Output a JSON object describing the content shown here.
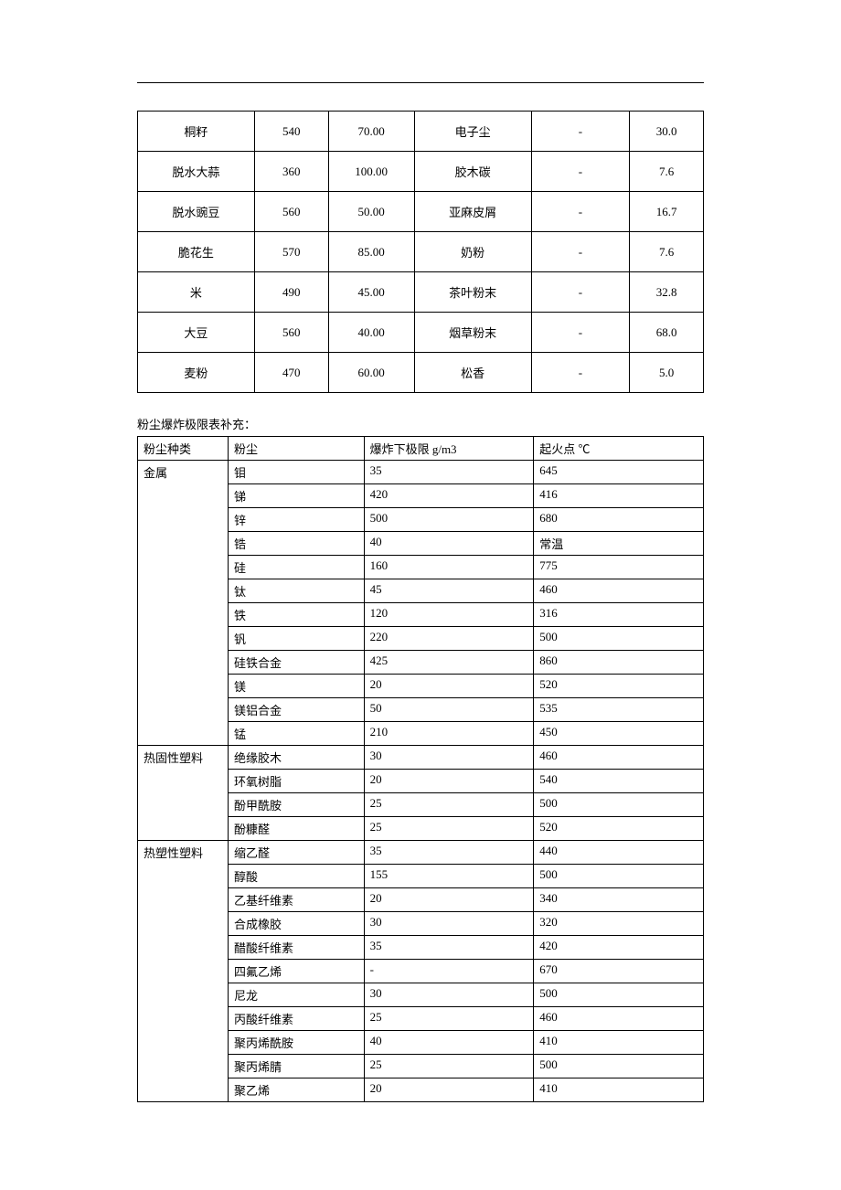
{
  "table1": {
    "rows": [
      {
        "a": "桐籽",
        "b": "540",
        "c": "70.00",
        "d": "电子尘",
        "e": "-",
        "f": "30.0"
      },
      {
        "a": "脱水大蒜",
        "b": "360",
        "c": "100.00",
        "d": "胶木碳",
        "e": "-",
        "f": "7.6"
      },
      {
        "a": "脱水豌豆",
        "b": "560",
        "c": "50.00",
        "d": "亚麻皮屑",
        "e": "-",
        "f": "16.7"
      },
      {
        "a": "脆花生",
        "b": "570",
        "c": "85.00",
        "d": "奶粉",
        "e": "-",
        "f": "7.6"
      },
      {
        "a": "米",
        "b": "490",
        "c": "45.00",
        "d": "茶叶粉末",
        "e": "-",
        "f": "32.8"
      },
      {
        "a": "大豆",
        "b": "560",
        "c": "40.00",
        "d": "烟草粉末",
        "e": "-",
        "f": "68.0"
      },
      {
        "a": "麦粉",
        "b": "470",
        "c": "60.00",
        "d": "松香",
        "e": "-",
        "f": "5.0"
      }
    ]
  },
  "caption": "粉尘爆炸极限表补充：",
  "table2": {
    "headers": {
      "h1": "粉尘种类",
      "h2": "粉尘",
      "h3": "爆炸下极限 g/m3",
      "h4": "起火点 ℃"
    },
    "groups": [
      {
        "category": "金属",
        "rows": [
          {
            "name": "钼",
            "limit": "35",
            "temp": "645"
          },
          {
            "name": "锑",
            "limit": "420",
            "temp": "416"
          },
          {
            "name": "锌",
            "limit": "500",
            "temp": "680"
          },
          {
            "name": "锆",
            "limit": "40",
            "temp": "常温"
          },
          {
            "name": "硅",
            "limit": "160",
            "temp": "775"
          },
          {
            "name": "钛",
            "limit": "45",
            "temp": "460"
          },
          {
            "name": "铁",
            "limit": "120",
            "temp": "316"
          },
          {
            "name": "钒",
            "limit": "220",
            "temp": "500"
          },
          {
            "name": "硅铁合金",
            "limit": "425",
            "temp": "860"
          },
          {
            "name": "镁",
            "limit": "20",
            "temp": "520"
          },
          {
            "name": "镁铝合金",
            "limit": "50",
            "temp": "535"
          },
          {
            "name": "锰",
            "limit": "210",
            "temp": "450"
          }
        ]
      },
      {
        "category": "热固性塑料",
        "rows": [
          {
            "name": "绝缘胶木",
            "limit": "30",
            "temp": "460"
          },
          {
            "name": "环氧树脂",
            "limit": "20",
            "temp": "540"
          },
          {
            "name": "酚甲酰胺",
            "limit": "25",
            "temp": "500"
          },
          {
            "name": "酚糠醛",
            "limit": "25",
            "temp": "520"
          }
        ]
      },
      {
        "category": "热塑性塑料",
        "rows": [
          {
            "name": "缩乙醛",
            "limit": "35",
            "temp": "440"
          },
          {
            "name": "醇酸",
            "limit": "155",
            "temp": "500"
          },
          {
            "name": "乙基纤维素",
            "limit": "20",
            "temp": "340"
          },
          {
            "name": "合成橡胶",
            "limit": "30",
            "temp": "320"
          },
          {
            "name": "醋酸纤维素",
            "limit": "35",
            "temp": "420"
          },
          {
            "name": "四氟乙烯",
            "limit": "-",
            "temp": "670"
          },
          {
            "name": "尼龙",
            "limit": "30",
            "temp": "500"
          },
          {
            "name": "丙酸纤维素",
            "limit": "25",
            "temp": "460"
          },
          {
            "name": "聚丙烯酰胺",
            "limit": "40",
            "temp": "410"
          },
          {
            "name": "聚丙烯腈",
            "limit": "25",
            "temp": "500"
          },
          {
            "name": "聚乙烯",
            "limit": "20",
            "temp": "410"
          }
        ]
      }
    ]
  }
}
